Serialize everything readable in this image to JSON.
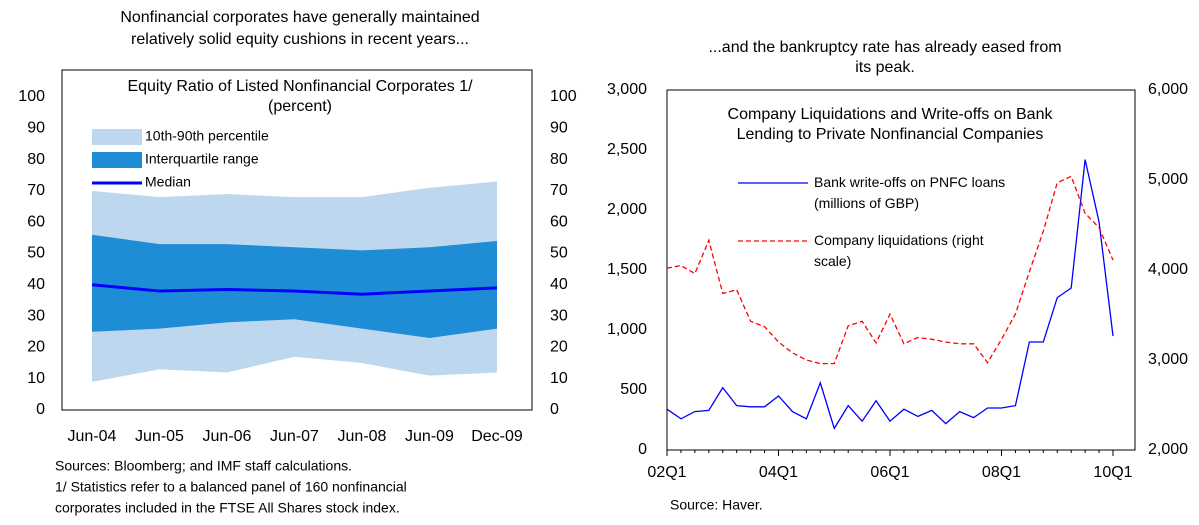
{
  "chart_data": [
    {
      "type": "band",
      "subtitle": [
        "Nonfinancial corporates have generally maintained",
        "relatively solid equity cushions in recent years..."
      ],
      "title": [
        "Equity Ratio of Listed Nonfinancial Corporates  1/",
        "(percent)"
      ],
      "categories": [
        "Jun-04",
        "Jun-05",
        "Jun-06",
        "Jun-07",
        "Jun-08",
        "Jun-09",
        "Dec-09"
      ],
      "series": [
        {
          "name": "10th-90th percentile",
          "color": "#bdd7ee",
          "lower": [
            9,
            13,
            12,
            17,
            15,
            11,
            12
          ],
          "upper": [
            70,
            68,
            69,
            68,
            68,
            71,
            73
          ]
        },
        {
          "name": "Interquartile range",
          "color": "#1f8dd6",
          "lower": [
            25,
            26,
            28,
            29,
            26,
            23,
            26
          ],
          "upper": [
            56,
            53,
            53,
            52,
            51,
            52,
            54
          ]
        },
        {
          "name": "Median",
          "color": "#0000ff",
          "values": [
            40,
            38,
            38.5,
            38,
            37,
            38,
            39
          ]
        }
      ],
      "ylim": [
        0,
        100
      ],
      "yticks": [
        0,
        10,
        20,
        30,
        40,
        50,
        60,
        70,
        80,
        90,
        100
      ],
      "y2lim": [
        0,
        100
      ],
      "y2ticks": [
        0,
        10,
        20,
        30,
        40,
        50,
        60,
        70,
        80,
        90,
        100
      ],
      "notes": [
        "Sources: Bloomberg; and IMF staff calculations.",
        "1/ Statistics refer to a balanced panel of 160 nonfinancial",
        "corporates included in the FTSE All Shares stock index."
      ]
    },
    {
      "type": "line",
      "subtitle": [
        "...and the bankruptcy rate has already eased from",
        "its peak."
      ],
      "title": [
        "Company Liquidations and Write-offs on Bank",
        "Lending to Private Nonfinancial Companies"
      ],
      "categories": [
        "02Q1",
        null,
        null,
        null,
        null,
        null,
        null,
        null,
        "04Q1",
        null,
        null,
        null,
        null,
        null,
        null,
        null,
        "06Q1",
        null,
        null,
        null,
        null,
        null,
        null,
        null,
        "08Q1",
        null,
        null,
        null,
        null,
        null,
        null,
        null,
        "10Q1"
      ],
      "series": [
        {
          "name": "Bank write-offs on PNFC loans (millions of GBP)",
          "color": "#0000ff",
          "dash": false,
          "axis": "y",
          "values": [
            340,
            260,
            320,
            330,
            520,
            370,
            360,
            360,
            450,
            320,
            260,
            560,
            180,
            370,
            240,
            410,
            240,
            340,
            280,
            330,
            220,
            320,
            270,
            350,
            350,
            370,
            900,
            900,
            1270,
            1350,
            2420,
            1900,
            950
          ]
        },
        {
          "name": "Company liquidations (right scale)",
          "color": "#ff0000",
          "dash": true,
          "axis": "y2",
          "values": [
            4020,
            4050,
            3960,
            4330,
            3740,
            3780,
            3430,
            3370,
            3200,
            3080,
            3000,
            2960,
            2960,
            3380,
            3430,
            3190,
            3510,
            3180,
            3250,
            3230,
            3200,
            3180,
            3180,
            2970,
            3230,
            3510,
            3980,
            4430,
            4970,
            5040,
            4630,
            4470,
            4110
          ]
        }
      ],
      "ylim": [
        0,
        3000
      ],
      "yticks": [
        0,
        500,
        {
          "value": 1000,
          "label": "1,000"
        },
        {
          "value": 1500,
          "label": "1,500"
        },
        {
          "value": 2000,
          "label": "2,000"
        },
        {
          "value": 2500,
          "label": "2,500"
        },
        {
          "value": 3000,
          "label": "3,000"
        }
      ],
      "y2lim": [
        2000,
        6000
      ],
      "y2ticks": [
        {
          "value": 2000,
          "label": "2,000"
        },
        {
          "value": 3000,
          "label": "3,000"
        },
        {
          "value": 4000,
          "label": "4,000"
        },
        {
          "value": 5000,
          "label": "5,000"
        },
        {
          "value": 6000,
          "label": "6,000"
        }
      ],
      "notes": [
        "Source: Haver."
      ]
    }
  ]
}
